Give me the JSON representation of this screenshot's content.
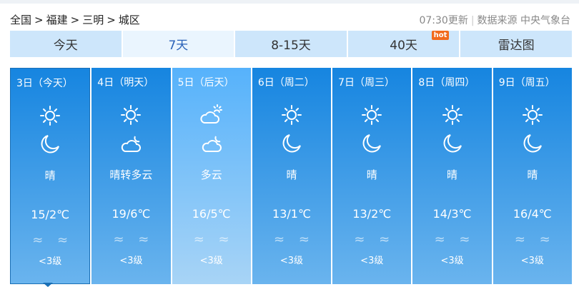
{
  "breadcrumb": [
    "全国",
    ">",
    "福建",
    ">",
    "三明",
    ">",
    "城区"
  ],
  "update_time": "07:30更新",
  "source": "数据来源 中央气象台",
  "tabs": [
    {
      "label": "今天"
    },
    {
      "label": "7天",
      "active": true
    },
    {
      "label": "8-15天"
    },
    {
      "label": "40天",
      "badge": "hot"
    },
    {
      "label": "雷达图"
    }
  ],
  "colors": {
    "card_top": "#1685e0",
    "card_bottom": "#6ab4ee",
    "tab_bg": "#cde6fb",
    "hot": "#f26b1d"
  },
  "days": [
    {
      "date": "3日（今天）",
      "day_icon": "sun-icon",
      "night_icon": "moon-icon",
      "desc": "晴",
      "temp": "15/2℃",
      "wind": "≈ ≈",
      "level": "<3级"
    },
    {
      "date": "4日（明天）",
      "day_icon": "sun-icon",
      "night_icon": "cloud-moon-icon",
      "desc": "晴转多云",
      "temp": "19/6℃",
      "wind": "≈ ≈",
      "level": "<3级"
    },
    {
      "date": "5日（后天）",
      "day_icon": "cloud-sun-icon",
      "night_icon": "cloud-moon-icon",
      "desc": "多云",
      "temp": "16/5℃",
      "wind": "≈ ≈",
      "level": "<3级"
    },
    {
      "date": "6日（周二）",
      "day_icon": "sun-icon",
      "night_icon": "moon-icon",
      "desc": "晴",
      "temp": "13/1℃",
      "wind": "≈ ≈",
      "level": "<3级"
    },
    {
      "date": "7日（周三）",
      "day_icon": "sun-icon",
      "night_icon": "moon-icon",
      "desc": "晴",
      "temp": "13/2℃",
      "wind": "≈ ≈",
      "level": "<3级"
    },
    {
      "date": "8日（周四）",
      "day_icon": "sun-icon",
      "night_icon": "moon-icon",
      "desc": "晴",
      "temp": "14/3℃",
      "wind": "≈ ≈",
      "level": "<3级"
    },
    {
      "date": "9日（周五）",
      "day_icon": "sun-icon",
      "night_icon": "moon-icon",
      "desc": "晴",
      "temp": "16/4℃",
      "wind": "≈ ≈",
      "level": "<3级"
    }
  ]
}
